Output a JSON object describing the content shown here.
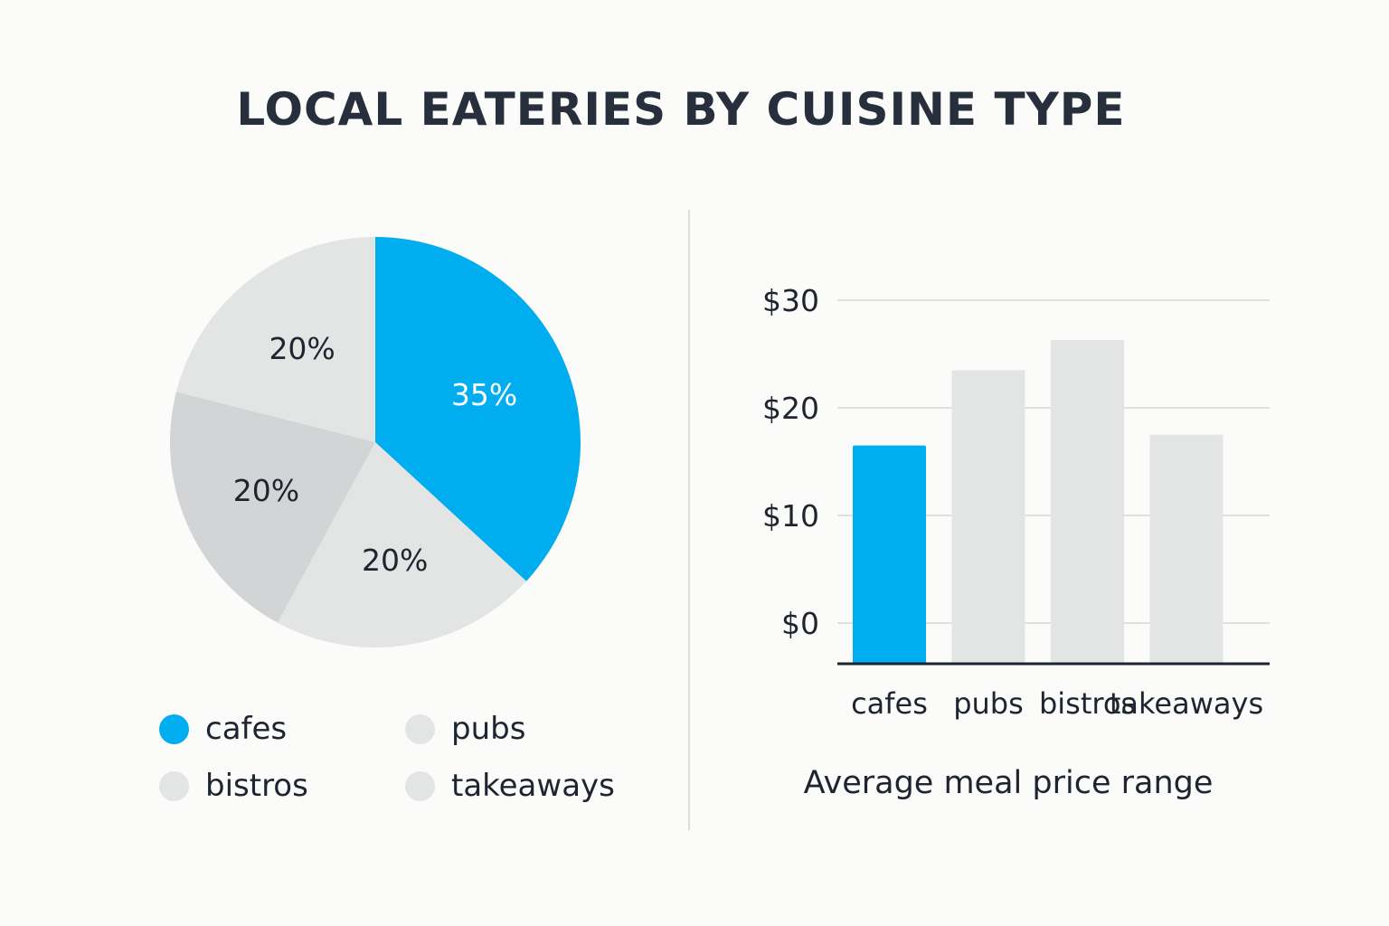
{
  "title": "LOCAL EATERIES BY CUISINE TYPE",
  "colors": {
    "accent": "#00adee",
    "slice_light": "#e3e4e4",
    "slice_mid": "#d3d4d5",
    "grid": "#e0e0e0",
    "axis": "#1e2530",
    "text_dark": "#1e2530",
    "text_on_accent": "#ffffff"
  },
  "legend": [
    {
      "label": "cafes",
      "color": "#00adee"
    },
    {
      "label": "pubs",
      "color": "#e3e4e4"
    },
    {
      "label": "bistros",
      "color": "#e3e4e4"
    },
    {
      "label": "takeaways",
      "color": "#e3e4e4"
    }
  ],
  "bar_caption": "Average meal price range",
  "chart_data": [
    {
      "type": "pie",
      "slices": [
        {
          "label": "35%",
          "value": 35,
          "color": "#00adee"
        },
        {
          "label": "20%",
          "value": 20,
          "color": "#e3e4e4"
        },
        {
          "label": "20%",
          "value": 20,
          "color": "#d3d4d5"
        },
        {
          "label": "20%",
          "value": 20,
          "color": "#e3e4e4"
        }
      ]
    },
    {
      "type": "bar",
      "categories": [
        "cafes",
        "pubs",
        "bistros",
        "takeaways"
      ],
      "values": [
        16.5,
        23.5,
        26.3,
        17.5
      ],
      "colors": [
        "#00adee",
        "#e3e4e4",
        "#e3e4e4",
        "#e3e4e4"
      ],
      "yticks": [
        "$0",
        "$10",
        "$20",
        "$30"
      ],
      "ytick_values": [
        0,
        10,
        20,
        30
      ],
      "ylim": [
        0,
        30
      ],
      "grid": true
    }
  ]
}
